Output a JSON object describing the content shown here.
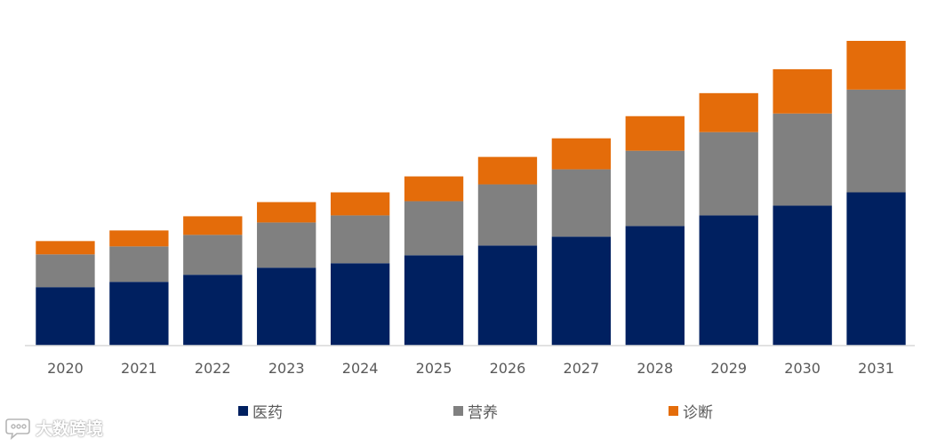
{
  "chart_data": {
    "type": "bar",
    "stacked": true,
    "title": "",
    "xlabel": "",
    "ylabel": "",
    "grid": false,
    "legend": "bottom",
    "ylim": [
      0,
      345
    ],
    "categories": [
      "2020",
      "2021",
      "2022",
      "2023",
      "2024",
      "2025",
      "2026",
      "2027",
      "2028",
      "2029",
      "2030",
      "2031"
    ],
    "series": [
      {
        "name": "医药",
        "color": "#002060",
        "values": [
          66,
          72,
          80,
          88,
          93,
          102,
          113,
          123,
          135,
          147,
          158,
          173
        ]
      },
      {
        "name": "营养",
        "color": "#808080",
        "values": [
          37,
          40,
          45,
          51,
          54,
          61,
          69,
          76,
          85,
          94,
          104,
          116
        ]
      },
      {
        "name": "诊断",
        "color": "#E46C0A",
        "values": [
          15,
          18,
          21,
          23,
          26,
          28,
          31,
          35,
          39,
          44,
          50,
          55
        ]
      }
    ]
  },
  "watermark": {
    "text": "大数跨境",
    "icon": "chat-bubble-icon"
  }
}
